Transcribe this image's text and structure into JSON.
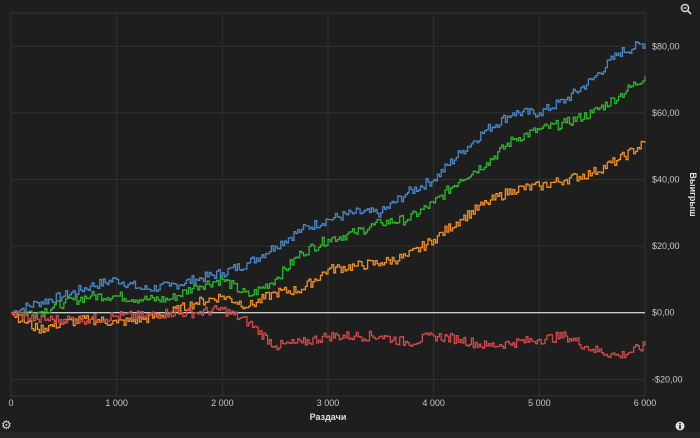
{
  "chart_data": {
    "type": "line",
    "title": "",
    "xlabel": "Раздачи",
    "ylabel": "Выигрыш",
    "xlim": [
      0,
      6000
    ],
    "ylim": [
      -25,
      90
    ],
    "x_ticks": [
      0,
      1000,
      2000,
      3000,
      4000,
      5000,
      6000
    ],
    "x_tick_labels": [
      "0",
      "1 000",
      "2 000",
      "3 000",
      "4 000",
      "5 000",
      "6 000"
    ],
    "y_ticks": [
      -20,
      0,
      20,
      40,
      60,
      80
    ],
    "y_tick_labels": [
      "-$20,00",
      "$0,00",
      "$20,00",
      "$40,00",
      "$60,00",
      "$80,00"
    ],
    "grid": true,
    "x": [
      0,
      250,
      500,
      750,
      1000,
      1250,
      1500,
      1750,
      2000,
      2250,
      2500,
      2750,
      3000,
      3250,
      3500,
      3750,
      4000,
      4250,
      4500,
      4750,
      5000,
      5250,
      5500,
      5750,
      6000
    ],
    "series": [
      {
        "name": "blue",
        "color": "#4a86c8",
        "values": [
          0,
          3,
          5,
          8,
          10,
          7,
          8,
          10,
          12,
          15,
          20,
          25,
          28,
          30,
          30,
          36,
          40,
          48,
          55,
          60,
          60,
          64,
          70,
          78,
          81
        ]
      },
      {
        "name": "green",
        "color": "#2fb52f",
        "values": [
          0,
          0,
          3,
          5,
          5,
          4,
          4,
          8,
          10,
          5,
          10,
          18,
          22,
          24,
          27,
          28,
          33,
          40,
          45,
          52,
          55,
          57,
          60,
          65,
          71
        ]
      },
      {
        "name": "orange",
        "color": "#ef8f2c",
        "values": [
          0,
          -5,
          -3,
          -2,
          -3,
          -2,
          0,
          3,
          5,
          2,
          6,
          7,
          13,
          14,
          15,
          17,
          22,
          28,
          33,
          37,
          38,
          40,
          42,
          46,
          51
        ]
      },
      {
        "name": "red",
        "color": "#cf4a4a",
        "values": [
          0,
          -2,
          -2,
          -2,
          -1,
          -1,
          0,
          0,
          1,
          -3,
          -10,
          -9,
          -7,
          -7,
          -7,
          -9,
          -7,
          -8,
          -10,
          -9,
          -8,
          -7,
          -11,
          -13,
          -10
        ]
      }
    ],
    "zero_line_color": "#ffffff"
  },
  "icons": {
    "zoom": "zoom-out-icon",
    "settings": "gear-icon",
    "info": "info-icon"
  }
}
